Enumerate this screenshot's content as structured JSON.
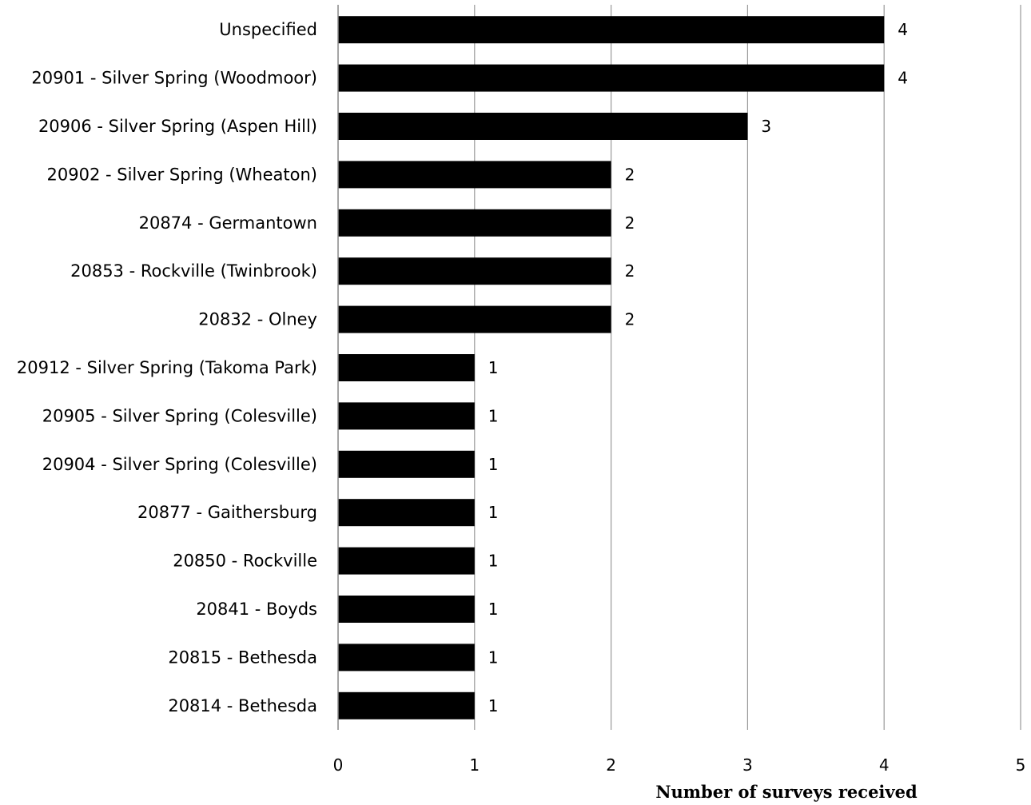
{
  "chart_data": {
    "type": "bar",
    "orientation": "horizontal",
    "title": "",
    "xlabel": "Number of surveys received",
    "ylabel": "",
    "categories": [
      "Unspecified",
      "20901 - Silver Spring (Woodmoor)",
      "20906 - Silver Spring (Aspen Hill)",
      "20902 - Silver Spring (Wheaton)",
      "20874 - Germantown",
      "20853 - Rockville (Twinbrook)",
      "20832 - Olney",
      "20912 - Silver Spring (Takoma Park)",
      "20905 - Silver Spring (Colesville)",
      "20904 - Silver Spring (Colesville)",
      "20877 - Gaithersburg",
      "20850 - Rockville",
      "20841 - Boyds",
      "20815 - Bethesda",
      "20814 - Bethesda"
    ],
    "values": [
      4,
      4,
      3,
      2,
      2,
      2,
      2,
      1,
      1,
      1,
      1,
      1,
      1,
      1,
      1
    ],
    "data_labels": [
      "4",
      "4",
      "3",
      "2",
      "2",
      "2",
      "2",
      "1",
      "1",
      "1",
      "1",
      "1",
      "1",
      "1",
      "1"
    ],
    "xlim": [
      0,
      5
    ],
    "xticks": [
      0,
      1,
      2,
      3,
      4,
      5
    ],
    "xtick_labels": [
      "0",
      "1",
      "2",
      "3",
      "4",
      "5"
    ],
    "grid": "vertical",
    "legend": "none",
    "bar_color": "#000000",
    "grid_color": "#999999"
  }
}
